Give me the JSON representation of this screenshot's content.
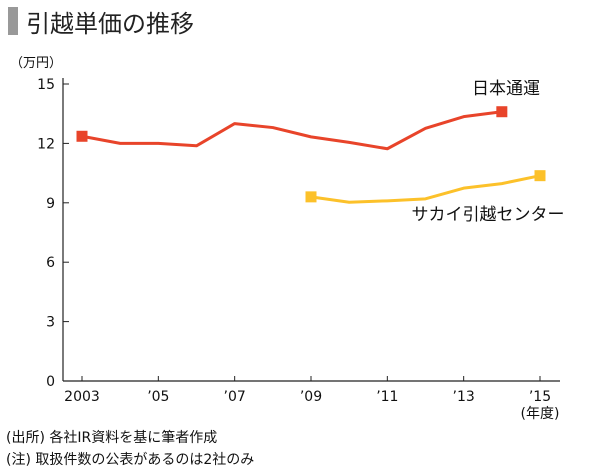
{
  "title": "引越単価の推移",
  "chart_data": {
    "type": "line",
    "unit_label": "（万円）",
    "x": [
      2003,
      2004,
      2005,
      2006,
      2007,
      2008,
      2009,
      2010,
      2011,
      2012,
      2013,
      2014,
      2015
    ],
    "x_tick_values": [
      2003,
      2005,
      2007,
      2009,
      2011,
      2013,
      2015
    ],
    "x_tick_labels": [
      "2003",
      "’05",
      "’07",
      "’09",
      "’11",
      "’13",
      "’15"
    ],
    "x_unit_label": "(年度)",
    "y_ticks": [
      0,
      3,
      6,
      9,
      12,
      15
    ],
    "ylim": [
      0,
      15
    ],
    "grid": false,
    "series": [
      {
        "name": "日本通運",
        "color": "#e8442a",
        "x": [
          2003,
          2004,
          2005,
          2006,
          2007,
          2008,
          2009,
          2010,
          2011,
          2012,
          2013,
          2014
        ],
        "values": [
          12.36,
          12.0,
          12.0,
          11.88,
          13.0,
          12.8,
          12.33,
          12.05,
          11.73,
          12.76,
          13.35,
          13.6
        ]
      },
      {
        "name": "サカイ引越センター",
        "color": "#fcc12a",
        "x": [
          2009,
          2010,
          2011,
          2012,
          2013,
          2014,
          2015
        ],
        "values": [
          9.3,
          9.03,
          9.1,
          9.2,
          9.74,
          9.97,
          10.37
        ]
      }
    ]
  },
  "notes": [
    "(出所) 各社IR資料を基に筆者作成",
    "(注) 取扱件数の公表があるのは2社のみ"
  ]
}
